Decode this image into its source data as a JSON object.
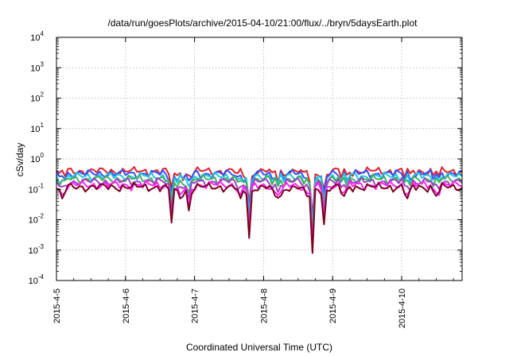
{
  "chart_data": {
    "type": "line",
    "title": "/data/run/goesPlots/archive/2015-04-10/21:00/flux/../bryn/5daysEarth.plot",
    "xlabel": "Coordinated Universal Time (UTC)",
    "ylabel": "cSv/day",
    "xlim": [
      "2015-04-05",
      "2015-04-10T21:00"
    ],
    "ylim": [
      0.0001,
      10000
    ],
    "yscale": "log",
    "grid": true,
    "x_ticks": [
      "2015-4-5",
      "2015-4-6",
      "2015-4-7",
      "2015-4-8",
      "2015-4-9",
      "2015-4-10"
    ],
    "y_ticks": [
      {
        "base": "10",
        "exp": "-4",
        "value": 0.0001
      },
      {
        "base": "10",
        "exp": "-3",
        "value": 0.001
      },
      {
        "base": "10",
        "exp": "-2",
        "value": 0.01
      },
      {
        "base": "10",
        "exp": "-1",
        "value": 0.1
      },
      {
        "base": "10",
        "exp": "0",
        "value": 1
      },
      {
        "base": "10",
        "exp": "1",
        "value": 10
      },
      {
        "base": "10",
        "exp": "2",
        "value": 100
      },
      {
        "base": "10",
        "exp": "3",
        "value": 1000
      },
      {
        "base": "10",
        "exp": "4",
        "value": 10000
      }
    ],
    "series": [
      {
        "color": "#e0202a",
        "level": 0.4
      },
      {
        "color": "#3050ff",
        "level": 0.33
      },
      {
        "color": "#20c8e0",
        "level": 0.27
      },
      {
        "color": "#40b060",
        "level": 0.22
      },
      {
        "color": "#a040c0",
        "level": 0.18
      },
      {
        "color": "#ff20ff",
        "level": 0.14
      },
      {
        "color": "#800020",
        "level": 0.12
      }
    ],
    "dips": [
      {
        "x": "2015-04-05T02:00",
        "min": 0.05
      },
      {
        "x": "2015-04-06T16:00",
        "min": 0.008
      },
      {
        "x": "2015-04-06T19:00",
        "min": 0.05
      },
      {
        "x": "2015-04-06T22:00",
        "min": 0.02
      },
      {
        "x": "2015-04-07T16:00",
        "min": 0.05
      },
      {
        "x": "2015-04-07T19:00",
        "min": 0.0025
      },
      {
        "x": "2015-04-08T04:00",
        "min": 0.06
      },
      {
        "x": "2015-04-08T06:00",
        "min": 0.06
      },
      {
        "x": "2015-04-08T15:00",
        "min": 0.06
      },
      {
        "x": "2015-04-08T17:00",
        "min": 0.0008
      },
      {
        "x": "2015-04-08T21:00",
        "min": 0.007
      },
      {
        "x": "2015-04-09T04:00",
        "min": 0.06
      },
      {
        "x": "2015-04-10T02:00",
        "min": 0.05
      },
      {
        "x": "2015-04-10T12:00",
        "min": 0.06
      }
    ]
  }
}
